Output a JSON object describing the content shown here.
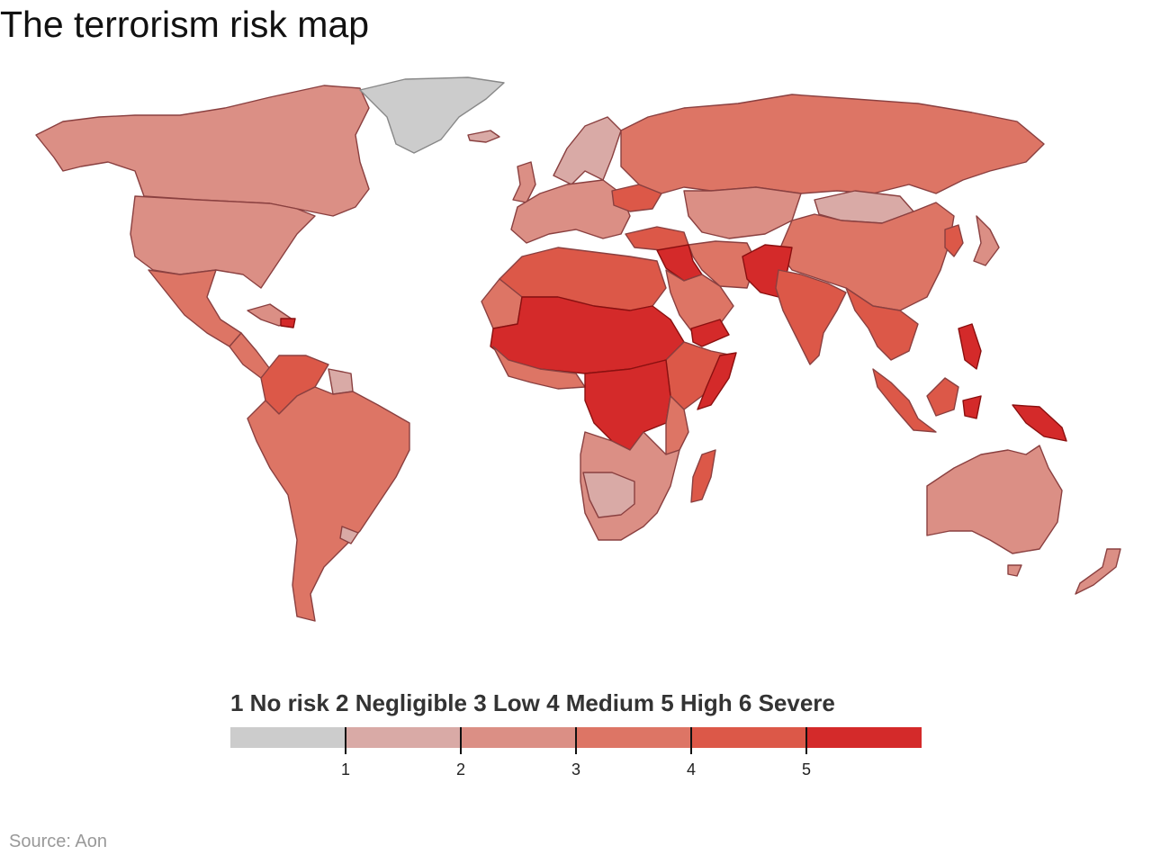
{
  "title": "The terrorism risk map",
  "legend": {
    "heading": "1 No risk 2 Negligible 3 Low 4 Medium 5 High 6 Severe",
    "levels": [
      {
        "level": 1,
        "label": "No risk",
        "color": "#cccccc"
      },
      {
        "level": 2,
        "label": "Negligible",
        "color": "#d9aaa6"
      },
      {
        "level": 3,
        "label": "Low",
        "color": "#db8f85"
      },
      {
        "level": 4,
        "label": "Medium",
        "color": "#dd7565"
      },
      {
        "level": 5,
        "label": "High",
        "color": "#dc5848"
      },
      {
        "level": 6,
        "label": "Severe",
        "color": "#d42a2a"
      }
    ],
    "tick_labels": [
      "1",
      "2",
      "3",
      "4",
      "5"
    ]
  },
  "source": "Source: Aon"
}
